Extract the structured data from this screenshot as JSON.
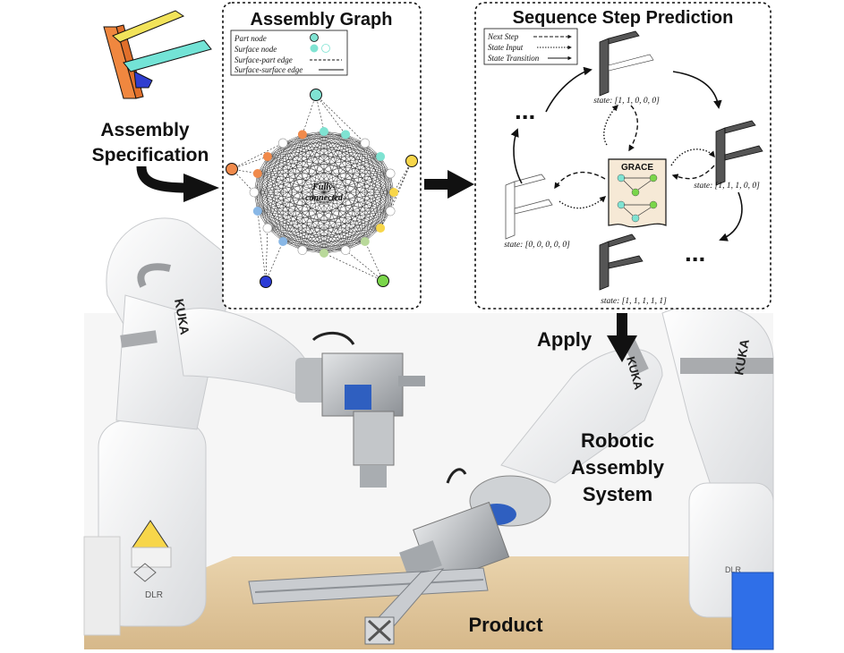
{
  "labels": {
    "assembly_specification_line1": "Assembly",
    "assembly_specification_line2": "Specification",
    "apply": "Apply",
    "robotic_line1": "Robotic",
    "robotic_line2": "Assembly",
    "robotic_line3": "System",
    "product": "Product"
  },
  "assembly_graph": {
    "title": "Assembly Graph",
    "center_line1": "Fully-",
    "center_line2": "connected",
    "legend": [
      {
        "label": "Part node"
      },
      {
        "label": "Surface node"
      },
      {
        "label": "Surface-part edge"
      },
      {
        "label": "Surface-surface edge"
      }
    ]
  },
  "sequence": {
    "title": "Sequence Step Prediction",
    "legend": [
      {
        "label": "Next Step"
      },
      {
        "label": "State Input"
      },
      {
        "label": "State Transition"
      }
    ],
    "grace_label": "GRACE",
    "ellipsis": "...",
    "states": [
      {
        "label": "state: [1, 1, 0, 0, 0]"
      },
      {
        "label": "state: [1, 1, 1, 0, 0]"
      },
      {
        "label": "state: [1, 1, 1, 1, 1]"
      },
      {
        "label": "state: [0, 0, 0, 0, 0]"
      }
    ]
  },
  "robot_marks": {
    "left_brand": "KUKA",
    "right_brand": "KUKA",
    "middle_brand": "KUKA",
    "dlr_left": "DLR",
    "dlr_right": "DLR"
  },
  "colors": {
    "part_teal": "#7fe3d2",
    "part_orange": "#f08a4b",
    "part_yellow": "#f7d64a",
    "part_blue": "#2b3bd6",
    "part_green": "#7ad64a",
    "spec_orange": "#f0873f",
    "spec_yellow": "#f2e35a",
    "spec_teal": "#73e3d6",
    "spec_blue": "#2f3ed0"
  }
}
